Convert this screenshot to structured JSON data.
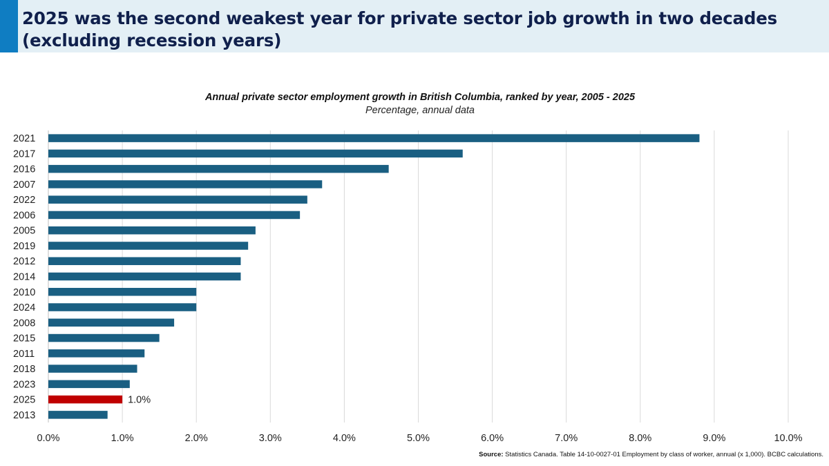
{
  "header": {
    "title": "2025 was the second weakest year for private sector job growth in two decades (excluding recession years)"
  },
  "colors": {
    "header_bg": "#e3eff5",
    "header_accent": "#0f7dc2",
    "bar": "#1a5f82",
    "highlight": "#c00000",
    "gridline": "#d9d9d9"
  },
  "chart_data": {
    "type": "bar",
    "orientation": "horizontal",
    "title": "Annual private sector employment growth in British Columbia, ranked by year, 2005 - 2025",
    "subtitle": "Percentage, annual data",
    "categories": [
      "2021",
      "2017",
      "2016",
      "2007",
      "2022",
      "2006",
      "2005",
      "2019",
      "2012",
      "2014",
      "2010",
      "2024",
      "2008",
      "2015",
      "2011",
      "2018",
      "2023",
      "2025",
      "2013"
    ],
    "values": [
      8.8,
      5.6,
      4.6,
      3.7,
      3.5,
      3.4,
      2.8,
      2.7,
      2.6,
      2.6,
      2.0,
      2.0,
      1.7,
      1.5,
      1.3,
      1.2,
      1.1,
      1.0,
      0.8
    ],
    "highlight_category": "2025",
    "data_labels": {
      "2025": "1.0%"
    },
    "xlim": [
      0,
      10
    ],
    "xticks": [
      "0.0%",
      "1.0%",
      "2.0%",
      "3.0%",
      "4.0%",
      "5.0%",
      "6.0%",
      "7.0%",
      "8.0%",
      "9.0%",
      "10.0%"
    ],
    "xlabel": "",
    "ylabel": "",
    "grid": "vertical",
    "legend": "none"
  },
  "source": {
    "label": "Source:",
    "text": " Statistics Canada. Table 14-10-0027-01  Employment by class of worker, annual (x 1,000). BCBC calculations."
  }
}
